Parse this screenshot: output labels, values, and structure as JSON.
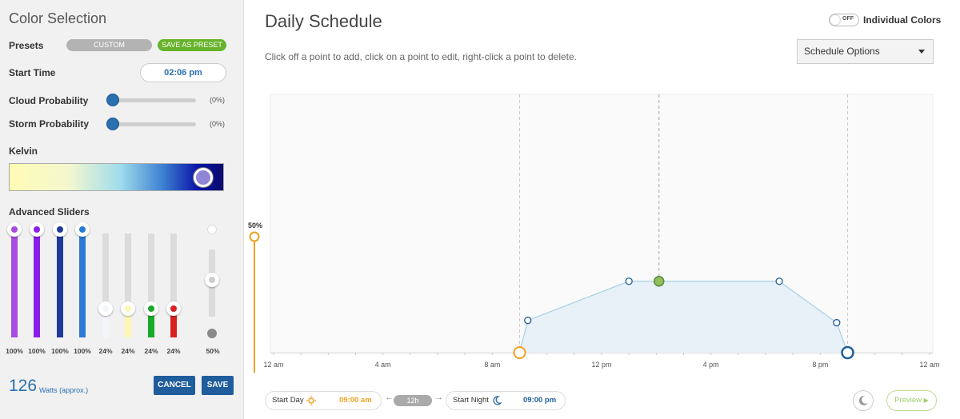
{
  "left": {
    "title": "Color Selection",
    "presets": {
      "label": "Presets",
      "current": "CUSTOM",
      "save_label": "SAVE AS PRESET"
    },
    "start_time": {
      "label": "Start Time",
      "value": "02:06 pm"
    },
    "cloud": {
      "label": "Cloud Probability",
      "value": "(0%)",
      "level": 0
    },
    "storm": {
      "label": "Storm Probability",
      "value": "(0%)",
      "level": 0
    },
    "kelvin_label": "Kelvin",
    "advanced_label": "Advanced Sliders",
    "sliders": [
      {
        "color": "#a84ce0",
        "value": "100%",
        "level": 1.0
      },
      {
        "color": "#8a1ee6",
        "value": "100%",
        "level": 1.0
      },
      {
        "color": "#1e3a9c",
        "value": "100%",
        "level": 1.0
      },
      {
        "color": "#2a7ad8",
        "value": "100%",
        "level": 1.0
      },
      {
        "color": "#f2f6fa",
        "value": "24%",
        "level": 0.24
      },
      {
        "color": "#fff6b4",
        "value": "24%",
        "level": 0.24
      },
      {
        "color": "#1aaa2a",
        "value": "24%",
        "level": 0.24
      },
      {
        "color": "#d82020",
        "value": "24%",
        "level": 0.24
      }
    ],
    "master_slider": {
      "value": "50%",
      "level": 0.5
    },
    "watts": {
      "value": "126",
      "unit": "Watts (approx.)"
    },
    "cancel_label": "CANCEL",
    "save_label": "SAVE"
  },
  "right": {
    "title": "Daily Schedule",
    "individual_colors": {
      "toggle": "OFF",
      "label": "Individual Colors"
    },
    "instructions": "Click off a point to add, click on a point to edit, right-click a point to delete.",
    "schedule_options": "Schedule Options",
    "y_label": "50%",
    "x_ticks": [
      "12 am",
      "4 am",
      "8 am",
      "12 pm",
      "4 pm",
      "8 pm",
      "12 am"
    ],
    "start_day": {
      "label": "Start Day",
      "value": "09:00 am"
    },
    "duration": "12h",
    "start_night": {
      "label": "Start Night",
      "value": "09:00 pm"
    },
    "preview": "Preview"
  },
  "chart_data": {
    "type": "area",
    "x_unit": "hour",
    "xlim": [
      0,
      24
    ],
    "ylim": [
      0,
      100
    ],
    "points": [
      {
        "x": 9.0,
        "y": 0
      },
      {
        "x": 9.3,
        "y": 14
      },
      {
        "x": 13.0,
        "y": 31
      },
      {
        "x": 14.1,
        "y": 31
      },
      {
        "x": 18.5,
        "y": 31
      },
      {
        "x": 20.6,
        "y": 13
      },
      {
        "x": 21.0,
        "y": 0
      }
    ],
    "current_time_hour": 14.1,
    "day_start_hour": 9,
    "night_start_hour": 21,
    "colors": {
      "line": "#a8d0e6",
      "fill": "#e8f1f8",
      "sun": "#f0a020",
      "moon": "#1f5d9c",
      "current": "#8fc05a"
    }
  }
}
